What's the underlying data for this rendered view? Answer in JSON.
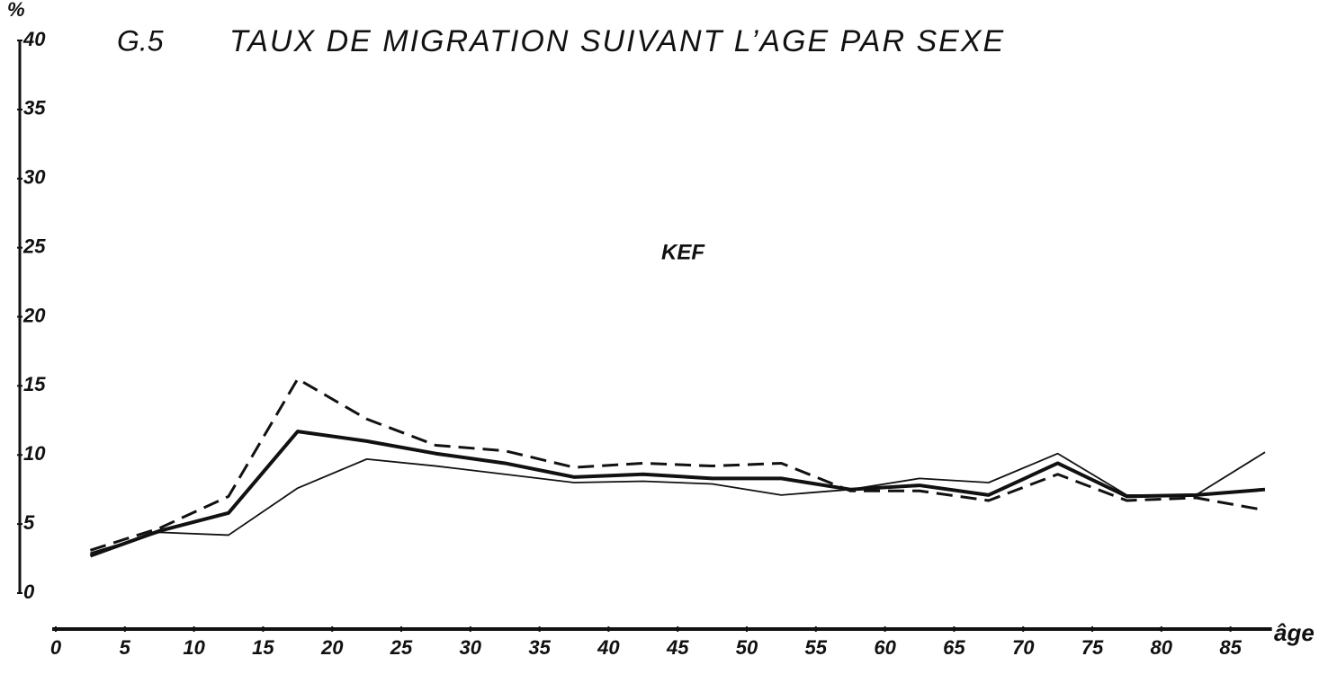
{
  "chart_data": {
    "type": "line",
    "figure_label": "G.5",
    "title": "TAUX DE MIGRATION SUIVANT L’AGE PAR SEXE",
    "annotation": "KEF",
    "y_label": "%",
    "x_label": "âge",
    "x": [
      2.5,
      7.5,
      12.5,
      17.5,
      22.5,
      27.5,
      32.5,
      37.5,
      42.5,
      47.5,
      52.5,
      57.5,
      62.5,
      67.5,
      72.5,
      77.5,
      82.5,
      87.5
    ],
    "series": [
      {
        "color": "#111111",
        "linestyle": "dashed",
        "linewidth": 3,
        "values": [
          3.1,
          4.7,
          7.0,
          15.5,
          12.6,
          10.7,
          10.3,
          9.1,
          9.4,
          9.2,
          9.4,
          7.4,
          7.4,
          6.7,
          8.6,
          6.7,
          6.9,
          6.0
        ]
      },
      {
        "color": "#111111",
        "linestyle": "solid",
        "linewidth": 4,
        "values": [
          2.7,
          4.5,
          5.8,
          11.7,
          11.0,
          10.1,
          9.4,
          8.4,
          8.6,
          8.3,
          8.3,
          7.5,
          7.8,
          7.1,
          9.4,
          7.0,
          7.1,
          7.5
        ]
      },
      {
        "color": "#111111",
        "linestyle": "solid",
        "linewidth": 1.8,
        "values": [
          2.9,
          4.4,
          4.2,
          7.6,
          9.7,
          9.2,
          8.6,
          8.0,
          8.1,
          7.9,
          7.1,
          7.5,
          8.3,
          8.0,
          10.1,
          7.1,
          7.1,
          10.2
        ]
      }
    ],
    "xlim": [
      0,
      88
    ],
    "xticks": [
      0,
      5,
      10,
      15,
      20,
      25,
      30,
      35,
      40,
      45,
      50,
      55,
      60,
      65,
      70,
      75,
      80,
      85
    ],
    "ylim": [
      0,
      40
    ],
    "yticks": [
      0,
      5,
      10,
      15,
      20,
      25,
      30,
      35,
      40
    ],
    "grid": false
  }
}
